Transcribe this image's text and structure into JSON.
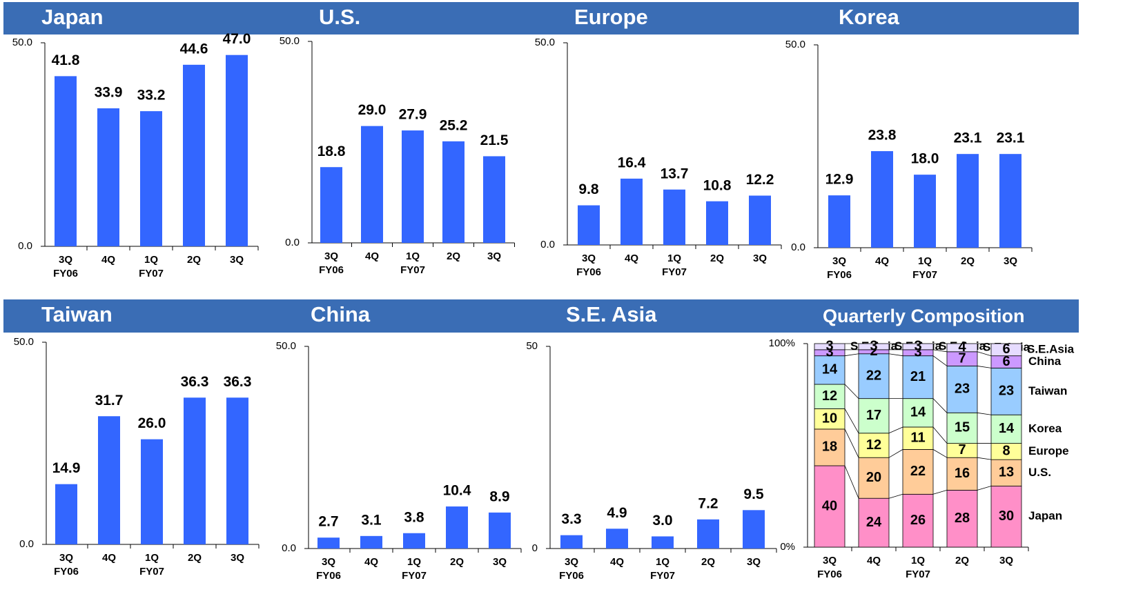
{
  "chart_data": [
    {
      "type": "bar",
      "title": "Japan",
      "categories": [
        "3Q",
        "4Q",
        "1Q",
        "2Q",
        "3Q"
      ],
      "category_groups": [
        "FY06",
        null,
        "FY07",
        null,
        null
      ],
      "values": [
        41.8,
        33.9,
        33.2,
        44.6,
        47.0
      ],
      "value_labels": [
        "41.8",
        "33.9",
        "33.2",
        "44.6",
        "47.0"
      ],
      "color": "#3366ff",
      "ylim": [
        0,
        50
      ],
      "yticks": [
        {
          "value": 0,
          "label": "0.0"
        },
        {
          "value": 50,
          "label": "50.0"
        }
      ]
    },
    {
      "type": "bar",
      "title": "U.S.",
      "categories": [
        "3Q",
        "4Q",
        "1Q",
        "2Q",
        "3Q"
      ],
      "category_groups": [
        "FY06",
        null,
        "FY07",
        null,
        null
      ],
      "values": [
        18.8,
        29.0,
        27.9,
        25.2,
        21.5
      ],
      "value_labels": [
        "18.8",
        "29.0",
        "27.9",
        "25.2",
        "21.5"
      ],
      "color": "#3366ff",
      "ylim": [
        0,
        50
      ],
      "yticks": [
        {
          "value": 0,
          "label": "0.0"
        },
        {
          "value": 50,
          "label": "50.0"
        }
      ]
    },
    {
      "type": "bar",
      "title": "Europe",
      "categories": [
        "3Q",
        "4Q",
        "1Q",
        "2Q",
        "3Q"
      ],
      "category_groups": [
        "FY06",
        null,
        "FY07",
        null,
        null
      ],
      "values": [
        9.8,
        16.4,
        13.7,
        10.8,
        12.2
      ],
      "value_labels": [
        "9.8",
        "16.4",
        "13.7",
        "10.8",
        "12.2"
      ],
      "color": "#3366ff",
      "ylim": [
        0,
        50
      ],
      "yticks": [
        {
          "value": 0,
          "label": "0.0"
        },
        {
          "value": 50,
          "label": "50.0"
        }
      ]
    },
    {
      "type": "bar",
      "title": "Korea",
      "categories": [
        "3Q",
        "4Q",
        "1Q",
        "2Q",
        "3Q"
      ],
      "category_groups": [
        "FY06",
        null,
        "FY07",
        null,
        null
      ],
      "values": [
        12.9,
        23.8,
        18.0,
        23.1,
        23.1
      ],
      "value_labels": [
        "12.9",
        "23.8",
        "18.0",
        "23.1",
        "23.1"
      ],
      "color": "#3366ff",
      "ylim": [
        0,
        50
      ],
      "yticks": [
        {
          "value": 0,
          "label": "0.0"
        },
        {
          "value": 50,
          "label": "50.0"
        }
      ]
    },
    {
      "type": "bar",
      "title": "Taiwan",
      "categories": [
        "3Q",
        "4Q",
        "1Q",
        "2Q",
        "3Q"
      ],
      "category_groups": [
        "FY06",
        null,
        "FY07",
        null,
        null
      ],
      "values": [
        14.9,
        31.7,
        26.0,
        36.3,
        36.3
      ],
      "value_labels": [
        "14.9",
        "31.7",
        "26.0",
        "36.3",
        "36.3"
      ],
      "color": "#3366ff",
      "ylim": [
        0,
        50
      ],
      "yticks": [
        {
          "value": 0,
          "label": "0.0"
        },
        {
          "value": 50,
          "label": "50.0"
        }
      ]
    },
    {
      "type": "bar",
      "title": "China",
      "categories": [
        "3Q",
        "4Q",
        "1Q",
        "2Q",
        "3Q"
      ],
      "category_groups": [
        "FY06",
        null,
        "FY07",
        null,
        null
      ],
      "values": [
        2.7,
        3.1,
        3.8,
        10.4,
        8.9
      ],
      "value_labels": [
        "2.7",
        "3.1",
        "3.8",
        "10.4",
        "8.9"
      ],
      "color": "#3366ff",
      "ylim": [
        0,
        50
      ],
      "yticks": [
        {
          "value": 0,
          "label": "0.0"
        },
        {
          "value": 50,
          "label": "50.0"
        }
      ]
    },
    {
      "type": "bar",
      "title": "S.E. Asia",
      "categories": [
        "3Q",
        "4Q",
        "1Q",
        "2Q",
        "3Q"
      ],
      "category_groups": [
        "FY06",
        null,
        "FY07",
        null,
        null
      ],
      "values": [
        3.3,
        4.9,
        3.0,
        7.2,
        9.5
      ],
      "value_labels": [
        "3.3",
        "4.9",
        "3.0",
        "7.2",
        "9.5"
      ],
      "color": "#3366ff",
      "ylim": [
        0,
        50
      ],
      "yticks": [
        0,
        50
      ]
    },
    {
      "type": "stacked_bar",
      "title": "Quarterly Composition",
      "categories": [
        "3Q",
        "4Q",
        "1Q",
        "2Q",
        "3Q"
      ],
      "category_groups": [
        "FY06",
        null,
        "FY07",
        null,
        null
      ],
      "ylim": [
        0,
        100
      ],
      "yticks": [
        {
          "value": 0,
          "label": "0%"
        },
        {
          "value": 100,
          "label": "100%"
        }
      ],
      "series": [
        {
          "name": "Japan",
          "color": "#ff8fc8",
          "values": [
            40,
            24,
            26,
            28,
            30
          ]
        },
        {
          "name": "U.S.",
          "color": "#ffcc99",
          "values": [
            18,
            20,
            22,
            16,
            13
          ]
        },
        {
          "name": "Europe",
          "color": "#ffff99",
          "values": [
            10,
            12,
            11,
            7,
            8
          ]
        },
        {
          "name": "Korea",
          "color": "#ccffcc",
          "values": [
            12,
            17,
            14,
            15,
            14
          ]
        },
        {
          "name": "Taiwan",
          "color": "#99ccff",
          "values": [
            14,
            22,
            21,
            23,
            23
          ]
        },
        {
          "name": "China",
          "color": "#cc99ff",
          "values": [
            3,
            2,
            3,
            7,
            6
          ]
        },
        {
          "name": "S.E.Asia",
          "color": "#e6dcff",
          "values": [
            3,
            3,
            3,
            4,
            6
          ]
        }
      ]
    }
  ]
}
